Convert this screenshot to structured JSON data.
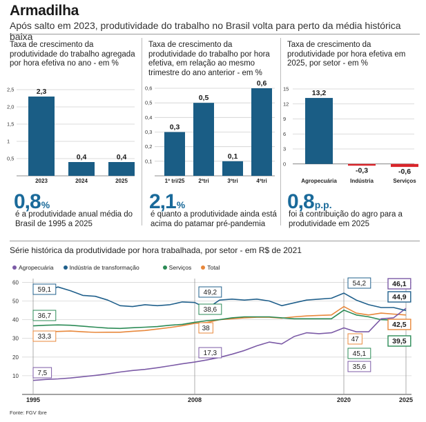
{
  "header": {
    "title": "Armadilha",
    "subtitle": "Após salto em 2023, produtividade do trabalho no Brasil volta para perto da média histórica baixa"
  },
  "colors": {
    "bar": "#1a5d85",
    "negative": "#d9262b",
    "accent_text": "#1a6a9a",
    "agro": "#7b5aa6",
    "industria": "#1f5f8b",
    "servicos": "#2a8a55",
    "total": "#e8873a"
  },
  "panels": [
    {
      "title_lines": [
        "Taxa de crescimento da",
        "produtividade do trabalho agregada",
        "por hora efetiva no ano - em %"
      ],
      "big_value": "0,8",
      "big_unit": "%",
      "desc_lines": [
        "é a produtividade anual média do",
        "Brasil de 1995 a 2025"
      ]
    },
    {
      "title_lines": [
        "Taxa de crescimento da",
        "produtividade do trabalho por hora",
        "efetiva, em relação ao mesmo",
        "trimestre do ano anterior - em %"
      ],
      "big_value": "2,1",
      "big_unit": "%",
      "desc_lines": [
        "é quanto a produtividade ainda está",
        "acima do patamar pré-pandemia"
      ]
    },
    {
      "title_lines": [
        "Taxa de crescimento da",
        "produtividade por hora efetiva em",
        "2025, por setor - em %"
      ],
      "big_value": "0,8",
      "big_unit": "p.p.",
      "desc_lines": [
        "foi a contribuição do agro para a",
        "produtividade em 2025"
      ]
    }
  ],
  "line_chart_title": "Série histórica da produtividade por hora trabalhada, por setor - em R$ de 2021",
  "legend": [
    {
      "label": "Agropecuária",
      "color": "#7b5aa6"
    },
    {
      "label": "Indústria de transformação",
      "color": "#1f5f8b"
    },
    {
      "label": "Serviços",
      "color": "#2a8a55"
    },
    {
      "label": "Total",
      "color": "#e8873a"
    }
  ],
  "source": "Fonte: FGV Ibre",
  "chart_data": [
    {
      "type": "bar",
      "title": "Taxa de crescimento da produtividade do trabalho agregada por hora efetiva no ano - em %",
      "categories": [
        "2023",
        "2024",
        "2025"
      ],
      "values": [
        2.3,
        0.4,
        0.4
      ],
      "value_labels": [
        "2,3",
        "0,4",
        "0,4"
      ],
      "yticks": [
        0.5,
        1,
        1.5,
        2,
        2.5
      ],
      "ytick_labels": [
        "0,5",
        "1",
        "1,5",
        "2,0",
        "2,5"
      ],
      "ylim": [
        0,
        2.5
      ]
    },
    {
      "type": "bar",
      "title": "Taxa de crescimento da produtividade do trabalho por hora efetiva, em relação ao mesmo trimestre do ano anterior - em %",
      "categories": [
        "1º tri/25",
        "2ºtri",
        "3ºtri",
        "4ºtri"
      ],
      "values": [
        0.3,
        0.5,
        0.1,
        0.6
      ],
      "value_labels": [
        "0,3",
        "0,5",
        "0,1",
        "0,6"
      ],
      "yticks": [
        0.1,
        0.2,
        0.3,
        0.4,
        0.5,
        0.6
      ],
      "ytick_labels": [
        "0,1",
        "0,2",
        "0,3",
        "0,4",
        "0,5",
        "0,6"
      ],
      "ylim": [
        0,
        0.6
      ]
    },
    {
      "type": "bar",
      "title": "Taxa de crescimento da produtividade por hora efetiva em 2025, por setor - em %",
      "categories": [
        "Agropecuária",
        "Indústria",
        "Serviços"
      ],
      "values": [
        13.2,
        -0.3,
        -0.6
      ],
      "value_labels": [
        "13,2",
        "-0,3",
        "-0,6"
      ],
      "yticks": [
        0,
        3,
        6,
        9,
        12,
        15
      ],
      "ytick_labels": [
        "0",
        "3",
        "6",
        "9",
        "12",
        "15"
      ],
      "ylim": [
        -1,
        15
      ]
    },
    {
      "type": "line",
      "title": "Série histórica da produtividade por hora trabalhada, por setor - em R$ de 2021",
      "x": [
        1995,
        1996,
        1997,
        1998,
        1999,
        2000,
        2001,
        2002,
        2003,
        2004,
        2005,
        2006,
        2007,
        2008,
        2009,
        2010,
        2011,
        2012,
        2013,
        2014,
        2015,
        2016,
        2017,
        2018,
        2019,
        2020,
        2021,
        2022,
        2023,
        2024,
        2025
      ],
      "xtick_labels": [
        "1995",
        "2008",
        "2020",
        "2025"
      ],
      "yticks": [
        10,
        20,
        30,
        40,
        50,
        60
      ],
      "ylim": [
        0,
        62
      ],
      "series": [
        {
          "name": "Agropecuária",
          "values": [
            7.5,
            8,
            8.3,
            8.8,
            9.5,
            10.2,
            11,
            12,
            12.8,
            13.4,
            14.3,
            15.3,
            16.4,
            17.3,
            18.5,
            19.8,
            21.5,
            23.5,
            26,
            28,
            27,
            31,
            33,
            32.5,
            33,
            35.6,
            33.5,
            33.5,
            40.5,
            41,
            46.1
          ]
        },
        {
          "name": "Indústria de transformação",
          "values": [
            59.1,
            55.5,
            57.5,
            55.5,
            53,
            52.5,
            50.5,
            47.5,
            47,
            48,
            47.5,
            48,
            49.5,
            49.2,
            46,
            50.5,
            51,
            50.5,
            51,
            50,
            47.5,
            49,
            50.5,
            51,
            51.5,
            54.2,
            50.5,
            48,
            46.5,
            46.5,
            44.9
          ]
        },
        {
          "name": "Serviços",
          "values": [
            36.7,
            37,
            37.2,
            37,
            36.5,
            36,
            35.5,
            35.3,
            35.7,
            36,
            36.3,
            37,
            37.5,
            38.6,
            39.5,
            40,
            41,
            41.5,
            41.5,
            41.5,
            41,
            40.5,
            40.5,
            40.5,
            40.5,
            45.1,
            42.5,
            41.5,
            40,
            39.8,
            39.5
          ]
        },
        {
          "name": "Total",
          "values": [
            33.3,
            33.5,
            33.7,
            33.9,
            33.5,
            33.2,
            33.3,
            33.3,
            33.8,
            34.2,
            35,
            35.8,
            36.8,
            38,
            38.5,
            40,
            40.5,
            41,
            41.3,
            41.3,
            40.8,
            41.5,
            42,
            42.3,
            42.5,
            47,
            43.5,
            42.5,
            43.5,
            43,
            42.5
          ]
        }
      ],
      "annotations": [
        {
          "series": "Indústria de transformação",
          "x": 1995,
          "label": "59,1"
        },
        {
          "series": "Serviços",
          "x": 1995,
          "label": "36,7"
        },
        {
          "series": "Total",
          "x": 1995,
          "label": "33,3"
        },
        {
          "series": "Agropecuária",
          "x": 1995,
          "label": "7,5"
        },
        {
          "series": "Indústria de transformação",
          "x": 2008,
          "label": "49,2"
        },
        {
          "series": "Serviços",
          "x": 2008,
          "label": "38,6"
        },
        {
          "series": "Total",
          "x": 2008,
          "label": "38"
        },
        {
          "series": "Agropecuária",
          "x": 2008,
          "label": "17,3"
        },
        {
          "series": "Indústria de transformação",
          "x": 2020,
          "label": "54,2"
        },
        {
          "series": "Total",
          "x": 2020,
          "label": "47"
        },
        {
          "series": "Serviços",
          "x": 2020,
          "label": "45,1"
        },
        {
          "series": "Agropecuária",
          "x": 2020,
          "label": "35,6"
        },
        {
          "series": "Agropecuária",
          "x": 2025,
          "label": "46,1"
        },
        {
          "series": "Indústria de transformação",
          "x": 2025,
          "label": "44,9"
        },
        {
          "series": "Total",
          "x": 2025,
          "label": "42,5"
        },
        {
          "series": "Serviços",
          "x": 2025,
          "label": "39,5"
        }
      ]
    }
  ]
}
